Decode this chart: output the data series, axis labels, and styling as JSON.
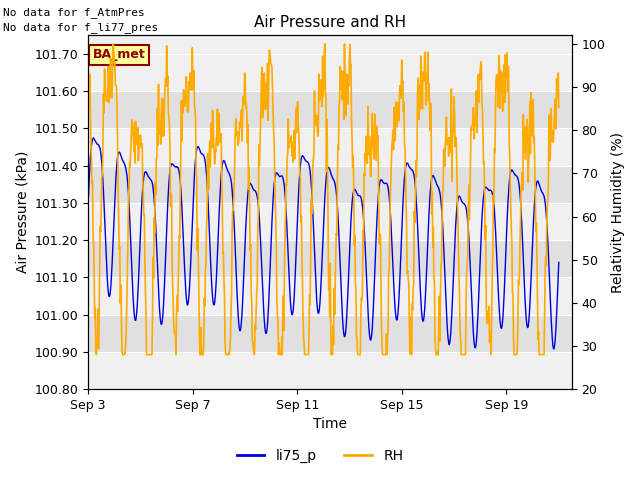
{
  "title": "Air Pressure and RH",
  "xlabel": "Time",
  "ylabel_left": "Air Pressure (kPa)",
  "ylabel_right": "Relativity Humidity (%)",
  "annotation_line1": "No data for f_AtmPres",
  "annotation_line2": "No data for f_li77_pres",
  "ba_met_label": "BA_met",
  "legend_labels": [
    "li75_p",
    "RH"
  ],
  "legend_colors": [
    "#0000dd",
    "#ffaa00"
  ],
  "ylim_left": [
    100.8,
    101.75
  ],
  "ylim_right": [
    20,
    102
  ],
  "yticks_left": [
    100.8,
    100.9,
    101.0,
    101.1,
    101.2,
    101.3,
    101.4,
    101.5,
    101.6,
    101.7
  ],
  "yticks_right": [
    20,
    30,
    40,
    50,
    60,
    70,
    80,
    90,
    100
  ],
  "xtick_labels": [
    "Sep 3",
    "Sep 7",
    "Sep 11",
    "Sep 15",
    "Sep 19"
  ],
  "xtick_positions": [
    0,
    4,
    8,
    12,
    16
  ],
  "xlim": [
    0,
    18.5
  ],
  "band_color_dark": "#e0e0e0",
  "band_color_light": "#f0f0f0",
  "plot_facecolor": "#f0f0f0"
}
